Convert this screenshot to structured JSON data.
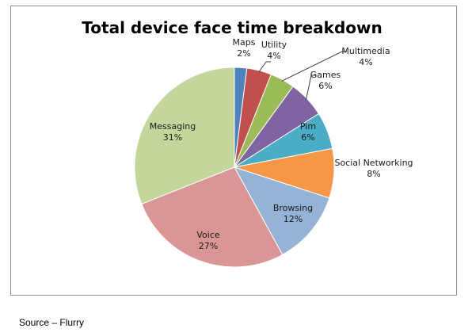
{
  "chart_data": {
    "type": "pie",
    "title": "Total device face time breakdown",
    "start_angle_deg": 0,
    "direction": "clockwise",
    "slices": [
      {
        "label": "Maps",
        "value": 2,
        "value_label": "2%",
        "color": "#4f81bd"
      },
      {
        "label": "Utility",
        "value": 4,
        "value_label": "4%",
        "color": "#c0504d"
      },
      {
        "label": "Multimedia",
        "value": 4,
        "value_label": "4%",
        "color": "#9bbb59"
      },
      {
        "label": "Games",
        "value": 6,
        "value_label": "6%",
        "color": "#8064a2"
      },
      {
        "label": "Pim",
        "value": 6,
        "value_label": "6%",
        "color": "#4bacc6"
      },
      {
        "label": "Social Networking",
        "value": 8,
        "value_label": "8%",
        "color": "#f79646"
      },
      {
        "label": "Browsing",
        "value": 12,
        "value_label": "12%",
        "color": "#95b3d7"
      },
      {
        "label": "Voice",
        "value": 27,
        "value_label": "27%",
        "color": "#d99694"
      },
      {
        "label": "Messaging",
        "value": 31,
        "value_label": "31%",
        "color": "#c3d69b"
      }
    ]
  },
  "footer": {
    "source": "Source – Flurry"
  }
}
